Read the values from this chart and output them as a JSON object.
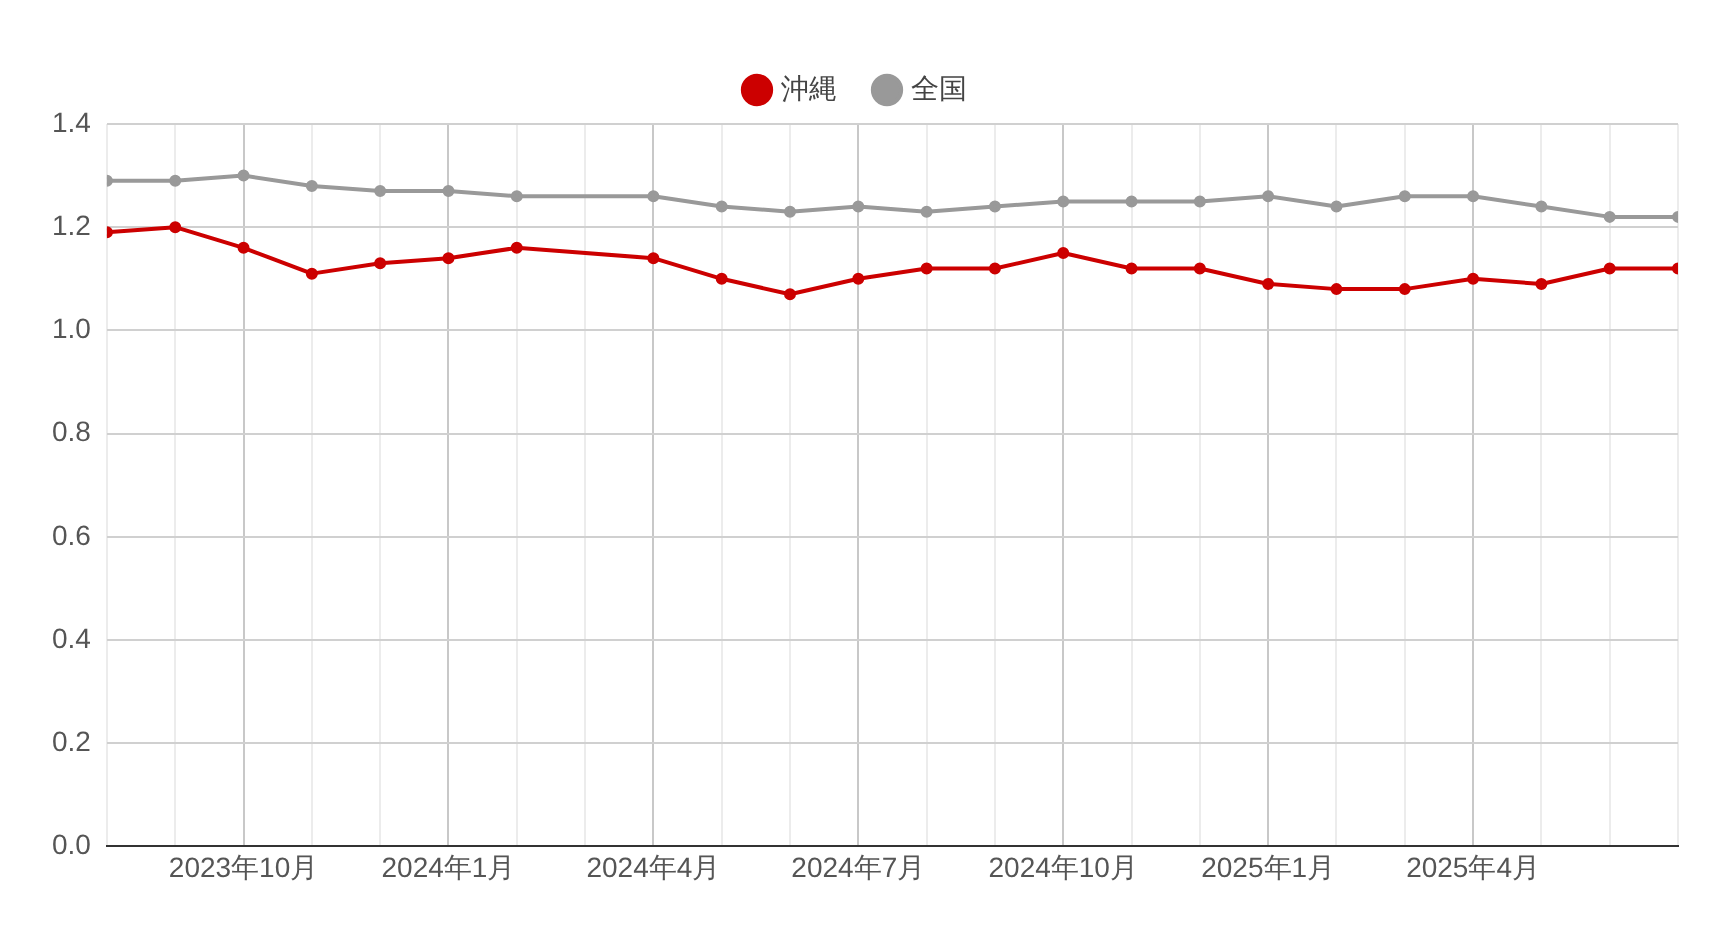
{
  "chart_data": {
    "type": "line",
    "x": [
      "2023-08",
      "2023-09",
      "2023-10",
      "2023-11",
      "2023-12",
      "2024-01",
      "2024-02",
      "2024-04",
      "2024-05",
      "2024-06",
      "2024-07",
      "2024-08",
      "2024-09",
      "2024-10",
      "2024-11",
      "2024-12",
      "2025-01",
      "2025-02",
      "2025-03",
      "2025-04",
      "2025-05",
      "2025-06",
      "2025-07"
    ],
    "series": [
      {
        "name": "沖縄",
        "color": "#cc0000",
        "values": [
          1.19,
          1.2,
          1.16,
          1.11,
          1.13,
          1.14,
          1.16,
          1.14,
          1.1,
          1.07,
          1.1,
          1.12,
          1.12,
          1.15,
          1.12,
          1.12,
          1.09,
          1.08,
          1.08,
          1.1,
          1.09,
          1.12,
          1.12
        ]
      },
      {
        "name": "全国",
        "color": "#999999",
        "values": [
          1.29,
          1.29,
          1.3,
          1.28,
          1.27,
          1.27,
          1.26,
          1.26,
          1.24,
          1.23,
          1.24,
          1.23,
          1.24,
          1.25,
          1.25,
          1.25,
          1.26,
          1.24,
          1.26,
          1.26,
          1.24,
          1.22,
          1.22
        ]
      }
    ],
    "xlim": [
      "2023-08",
      "2025-07"
    ],
    "xticks": [
      {
        "value": "2023-08",
        "label": null
      },
      {
        "value": "2023-09",
        "label": null
      },
      {
        "value": "2023-10",
        "label": "2023年10月"
      },
      {
        "value": "2023-11",
        "label": null
      },
      {
        "value": "2023-12",
        "label": null
      },
      {
        "value": "2024-01",
        "label": "2024年1月"
      },
      {
        "value": "2024-02",
        "label": null
      },
      {
        "value": "2024-03",
        "label": null
      },
      {
        "value": "2024-04",
        "label": "2024年4月"
      },
      {
        "value": "2024-05",
        "label": null
      },
      {
        "value": "2024-06",
        "label": null
      },
      {
        "value": "2024-07",
        "label": "2024年7月"
      },
      {
        "value": "2024-08",
        "label": null
      },
      {
        "value": "2024-09",
        "label": null
      },
      {
        "value": "2024-10",
        "label": "2024年10月"
      },
      {
        "value": "2024-11",
        "label": null
      },
      {
        "value": "2024-12",
        "label": null
      },
      {
        "value": "2025-01",
        "label": "2025年1月"
      },
      {
        "value": "2025-02",
        "label": null
      },
      {
        "value": "2025-03",
        "label": null
      },
      {
        "value": "2025-04",
        "label": "2025年4月"
      },
      {
        "value": "2025-05",
        "label": null
      },
      {
        "value": "2025-06",
        "label": null
      },
      {
        "value": "2025-07",
        "label": null
      }
    ],
    "ylim": [
      0,
      1.4
    ],
    "yticks": [
      {
        "value": 0,
        "label": "0.0"
      },
      {
        "value": 0.2,
        "label": "0.2"
      },
      {
        "value": 0.4,
        "label": "0.4"
      },
      {
        "value": 0.6,
        "label": "0.6"
      },
      {
        "value": 0.8,
        "label": "0.8"
      },
      {
        "value": 1.0,
        "label": "1.0"
      },
      {
        "value": 1.2,
        "label": "1.2"
      },
      {
        "value": 1.4,
        "label": "1.4"
      }
    ],
    "grid": true,
    "legend": "top",
    "marker": "circle",
    "line_style": "solid"
  }
}
